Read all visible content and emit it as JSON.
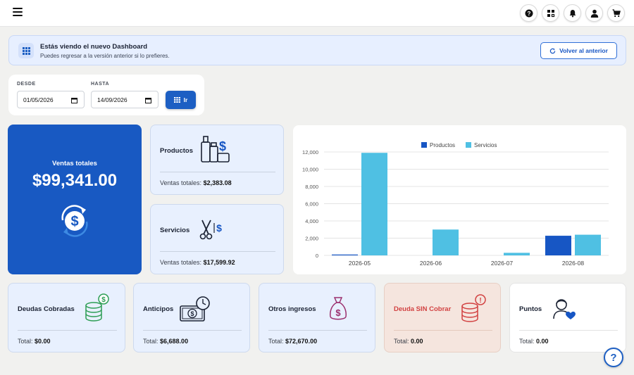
{
  "banner": {
    "title": "Estás viendo el nuevo Dashboard",
    "subtitle": "Puedes regresar a la versión anterior si lo prefieres.",
    "back_label": "Volver al anterior"
  },
  "filters": {
    "from_label": "DESDE",
    "from_value": "01/05/2026",
    "to_label": "HASTA",
    "to_value": "14/09/2026",
    "go_label": "Ir"
  },
  "totals": {
    "label": "Ventas totales",
    "value": "$99,341.00"
  },
  "productos": {
    "title": "Productos",
    "prefix": "Ventas totales:",
    "amount": "$2,383.08"
  },
  "servicios": {
    "title": "Servicios",
    "prefix": "Ventas totales:",
    "amount": "$17,599.92"
  },
  "bottom": {
    "deudas": {
      "title": "Deudas Cobradas",
      "prefix": "Total:",
      "amount": "$0.00"
    },
    "anticipos": {
      "title": "Anticipos",
      "prefix": "Total:",
      "amount": "$6,688.00"
    },
    "otros": {
      "title": "Otros ingresos",
      "prefix": "Total:",
      "amount": "$72,670.00"
    },
    "sin_cobrar": {
      "title": "Deuda SIN Cobrar",
      "prefix": "Total:",
      "amount": "0.00"
    },
    "puntos": {
      "title": "Puntos",
      "prefix": "Total:",
      "amount": "0.00"
    }
  },
  "colors": {
    "primary": "#1859c2",
    "productos": "#1756c4",
    "servicios": "#4fc0e3",
    "debt": "#d24242"
  },
  "icons": [
    "menu-icon",
    "help-icon",
    "apps-icon",
    "bell-icon",
    "user-icon",
    "cart-icon",
    "grid-icon",
    "refresh-icon",
    "calendar-icon"
  ],
  "chart_data": {
    "type": "bar",
    "categories": [
      "2026-05",
      "2026-06",
      "2026-07",
      "2026-08"
    ],
    "series": [
      {
        "name": "Productos",
        "values": [
          100,
          0,
          0,
          2280
        ]
      },
      {
        "name": "Servicios",
        "values": [
          11900,
          3000,
          300,
          2400
        ]
      }
    ],
    "y_ticks": [
      "0",
      "2,000",
      "4,000",
      "6,000",
      "8,000",
      "10,000",
      "12,000"
    ],
    "ylim": [
      0,
      12000
    ],
    "grid": true,
    "legend": "top-center"
  }
}
